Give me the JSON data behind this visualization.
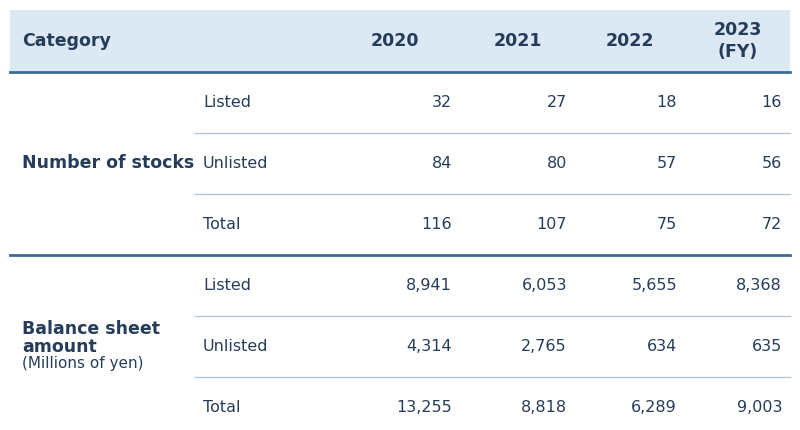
{
  "header_bg": "#dce9f5",
  "body_bg": "#ffffff",
  "sections": [
    {
      "label_lines": [
        "Number of stocks"
      ],
      "rows": [
        {
          "type": "Listed",
          "values": [
            "32",
            "27",
            "18",
            "16"
          ]
        },
        {
          "type": "Unlisted",
          "values": [
            "84",
            "80",
            "57",
            "56"
          ]
        },
        {
          "type": "Total",
          "values": [
            "116",
            "107",
            "75",
            "72"
          ]
        }
      ]
    },
    {
      "label_lines": [
        "Balance sheet",
        "amount",
        "(Millions of yen)"
      ],
      "rows": [
        {
          "type": "Listed",
          "values": [
            "8,941",
            "6,053",
            "5,655",
            "8,368"
          ]
        },
        {
          "type": "Unlisted",
          "values": [
            "4,314",
            "2,765",
            "634",
            "635"
          ]
        },
        {
          "type": "Total",
          "values": [
            "13,255",
            "8,818",
            "6,289",
            "9,003"
          ]
        }
      ]
    }
  ],
  "year_headers": [
    "2020",
    "2021",
    "2022",
    "2023\n(FY)"
  ],
  "header_text_color": "#253d5b",
  "body_text_color": "#253d5b",
  "thick_line_color": "#3d6b99",
  "thin_line_color": "#adc4d8",
  "header_font_size": 12.5,
  "body_font_size": 11.5,
  "label_font_size": 12.5
}
